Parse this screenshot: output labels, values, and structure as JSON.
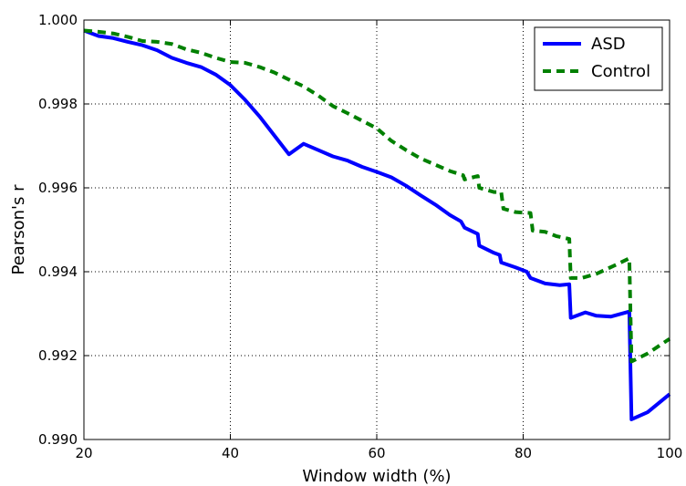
{
  "chart_data": {
    "type": "line",
    "xlabel": "Window width (%)",
    "ylabel": "Pearson's r",
    "xlim": [
      20,
      100
    ],
    "ylim": [
      0.99,
      1.0
    ],
    "xticks": [
      20,
      40,
      60,
      80,
      100
    ],
    "xtick_labels": [
      "20",
      "40",
      "60",
      "80",
      "100"
    ],
    "yticks": [
      0.99,
      0.992,
      0.994,
      0.996,
      0.998,
      1.0
    ],
    "ytick_labels": [
      "0.990",
      "0.992",
      "0.994",
      "0.996",
      "0.998",
      "1.000"
    ],
    "grid": true,
    "legend_position": "top-right",
    "series": [
      {
        "name": "ASD",
        "color": "#0000ff",
        "style": "solid",
        "points": [
          [
            20,
            0.99975
          ],
          [
            22,
            0.99962
          ],
          [
            24,
            0.99957
          ],
          [
            26,
            0.99948
          ],
          [
            28,
            0.9994
          ],
          [
            30,
            0.99928
          ],
          [
            32,
            0.9991
          ],
          [
            34,
            0.99898
          ],
          [
            36,
            0.99888
          ],
          [
            38,
            0.9987
          ],
          [
            40,
            0.99845
          ],
          [
            42,
            0.9981
          ],
          [
            44,
            0.9977
          ],
          [
            46,
            0.99725
          ],
          [
            48,
            0.9968
          ],
          [
            50,
            0.99705
          ],
          [
            52,
            0.9969
          ],
          [
            54,
            0.99675
          ],
          [
            56,
            0.99665
          ],
          [
            58,
            0.9965
          ],
          [
            60,
            0.99638
          ],
          [
            62,
            0.99625
          ],
          [
            64,
            0.99605
          ],
          [
            66,
            0.99582
          ],
          [
            68,
            0.9956
          ],
          [
            70,
            0.99535
          ],
          [
            71.5,
            0.9952
          ],
          [
            72,
            0.99505
          ],
          [
            73.8,
            0.9949
          ],
          [
            74,
            0.99462
          ],
          [
            76,
            0.99445
          ],
          [
            76.8,
            0.9944
          ],
          [
            77,
            0.99422
          ],
          [
            79,
            0.9941
          ],
          [
            80.5,
            0.994
          ],
          [
            81,
            0.99385
          ],
          [
            83,
            0.99372
          ],
          [
            85,
            0.99368
          ],
          [
            86.3,
            0.9937
          ],
          [
            86.5,
            0.9929
          ],
          [
            88.5,
            0.99303
          ],
          [
            90,
            0.99295
          ],
          [
            92,
            0.99293
          ],
          [
            94.5,
            0.99305
          ],
          [
            94.8,
            0.99048
          ],
          [
            97,
            0.99065
          ],
          [
            100,
            0.99108
          ]
        ]
      },
      {
        "name": "Control",
        "color": "#008000",
        "style": "dashed",
        "points": [
          [
            20,
            0.99975
          ],
          [
            22,
            0.99972
          ],
          [
            24,
            0.99968
          ],
          [
            26,
            0.9996
          ],
          [
            28,
            0.9995
          ],
          [
            30,
            0.99948
          ],
          [
            32,
            0.99943
          ],
          [
            34,
            0.9993
          ],
          [
            36,
            0.99922
          ],
          [
            38,
            0.9991
          ],
          [
            40,
            0.999
          ],
          [
            42,
            0.99898
          ],
          [
            44,
            0.99888
          ],
          [
            46,
            0.99875
          ],
          [
            48,
            0.99858
          ],
          [
            50,
            0.99842
          ],
          [
            52,
            0.9982
          ],
          [
            54,
            0.99795
          ],
          [
            56,
            0.99778
          ],
          [
            58,
            0.9976
          ],
          [
            60,
            0.99742
          ],
          [
            62,
            0.99712
          ],
          [
            64,
            0.9969
          ],
          [
            66,
            0.9967
          ],
          [
            68,
            0.99655
          ],
          [
            70,
            0.9964
          ],
          [
            71.8,
            0.9963
          ],
          [
            72,
            0.9962
          ],
          [
            73.8,
            0.99628
          ],
          [
            74,
            0.996
          ],
          [
            76,
            0.9959
          ],
          [
            77,
            0.9959
          ],
          [
            77.3,
            0.9955
          ],
          [
            79,
            0.99542
          ],
          [
            81,
            0.9954
          ],
          [
            81.3,
            0.99498
          ],
          [
            83,
            0.99495
          ],
          [
            84.5,
            0.99485
          ],
          [
            86.3,
            0.99478
          ],
          [
            86.5,
            0.99385
          ],
          [
            88,
            0.99385
          ],
          [
            90,
            0.99395
          ],
          [
            92.5,
            0.99415
          ],
          [
            94.5,
            0.99432
          ],
          [
            94.8,
            0.99186
          ],
          [
            97,
            0.99205
          ],
          [
            100,
            0.9924
          ]
        ]
      }
    ]
  }
}
